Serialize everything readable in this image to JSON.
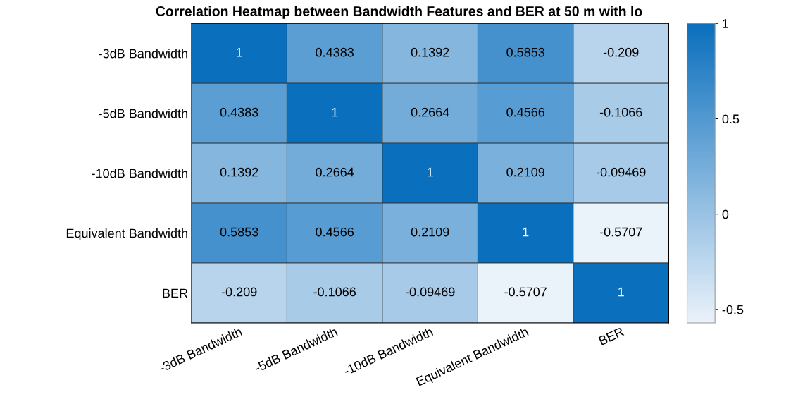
{
  "chart_data": {
    "type": "heatmap",
    "title": "Correlation Heatmap between Bandwidth Features and BER at 50 m with lo",
    "categories": [
      "-3dB Bandwidth",
      "-5dB Bandwidth",
      "-10dB Bandwidth",
      "Equivalent Bandwidth",
      "BER"
    ],
    "y_categories": [
      "-3dB Bandwidth",
      "-5dB Bandwidth",
      "-10dB Bandwidth",
      "Equivalent Bandwidth",
      "BER"
    ],
    "cells": [
      [
        1,
        0.4383,
        0.1392,
        0.5853,
        -0.209
      ],
      [
        0.4383,
        1,
        0.2664,
        0.4566,
        -0.1066
      ],
      [
        0.1392,
        0.2664,
        1,
        0.2109,
        -0.09469
      ],
      [
        0.5853,
        0.4566,
        0.2109,
        1,
        -0.5707
      ],
      [
        -0.209,
        -0.1066,
        -0.09469,
        -0.5707,
        1
      ]
    ],
    "data_labels": true,
    "clim": [
      -0.5707,
      1
    ],
    "cticks": [
      -0.5,
      0,
      0.5,
      1
    ],
    "colors": [
      "#eaf2fa",
      "#0a6fbd"
    ]
  }
}
